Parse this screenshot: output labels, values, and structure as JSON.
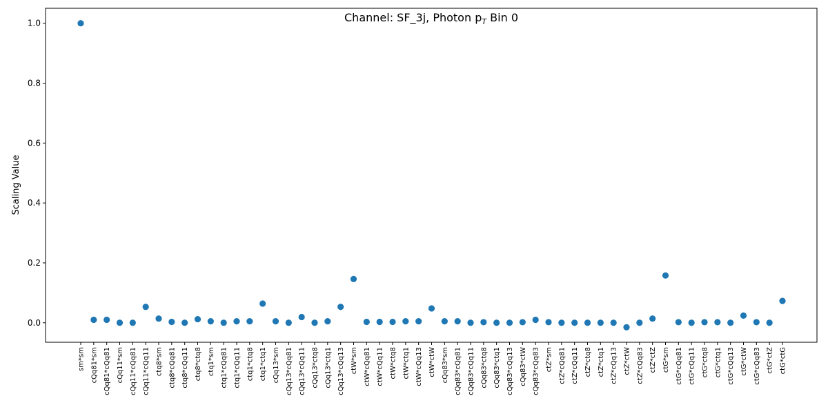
{
  "chart_data": {
    "type": "scatter",
    "title": "Channel: SF_3j, Photon p",
    "title_sub": "T",
    "title_suffix": " Bin 0",
    "xlabel": "",
    "ylabel": "Scaling Value",
    "ylim": [
      -0.065,
      1.05
    ],
    "yticks": [
      0.0,
      0.2,
      0.4,
      0.6,
      0.8,
      1.0
    ],
    "ytick_labels": [
      "0.0",
      "0.2",
      "0.4",
      "0.6",
      "0.8",
      "1.0"
    ],
    "grid": false,
    "marker_color": "#1f77b4",
    "categories": [
      "sm*sm",
      "cQq81*sm",
      "cQq81*cQq81",
      "cQq11*sm",
      "cQq11*cQq81",
      "cQq11*cQq11",
      "ctq8*sm",
      "ctq8*cQq81",
      "ctq8*cQq11",
      "ctq8*ctq8",
      "ctq1*sm",
      "ctq1*cQq81",
      "ctq1*cQq11",
      "ctq1*ctq8",
      "ctq1*ctq1",
      "cQq13*sm",
      "cQq13*cQq81",
      "cQq13*cQq11",
      "cQq13*ctq8",
      "cQq13*ctq1",
      "cQq13*cQq13",
      "ctW*sm",
      "ctW*cQq81",
      "ctW*cQq11",
      "ctW*ctq8",
      "ctW*ctq1",
      "ctW*cQq13",
      "ctW*ctW",
      "cQq83*sm",
      "cQq83*cQq81",
      "cQq83*cQq11",
      "cQq83*ctq8",
      "cQq83*ctq1",
      "cQq83*cQq13",
      "cQq83*ctW",
      "cQq83*cQq83",
      "ctZ*sm",
      "ctZ*cQq81",
      "ctZ*cQq11",
      "ctZ*ctq8",
      "ctZ*ctq1",
      "ctZ*cQq13",
      "ctZ*ctW",
      "ctZ*cQq83",
      "ctZ*ctZ",
      "ctG*sm",
      "ctG*cQq81",
      "ctG*cQq11",
      "ctG*ctq8",
      "ctG*ctq1",
      "ctG*cQq13",
      "ctG*ctW",
      "ctG*cQq83",
      "ctG*ctZ",
      "ctG*ctG"
    ],
    "values": [
      1.0,
      0.01,
      0.01,
      0.0,
      0.0,
      0.053,
      0.014,
      0.003,
      0.0,
      0.012,
      0.005,
      0.0,
      0.005,
      0.005,
      0.064,
      0.005,
      0.0,
      0.019,
      0.0,
      0.005,
      0.053,
      0.146,
      0.003,
      0.003,
      0.003,
      0.005,
      0.005,
      0.048,
      0.005,
      0.005,
      0.0,
      0.002,
      0.0,
      0.0,
      0.002,
      0.01,
      0.002,
      0.0,
      0.0,
      0.0,
      0.0,
      0.0,
      -0.015,
      0.0,
      0.014,
      0.158,
      0.002,
      0.0,
      0.002,
      0.002,
      0.0,
      0.024,
      0.002,
      0.0,
      0.073
    ]
  }
}
